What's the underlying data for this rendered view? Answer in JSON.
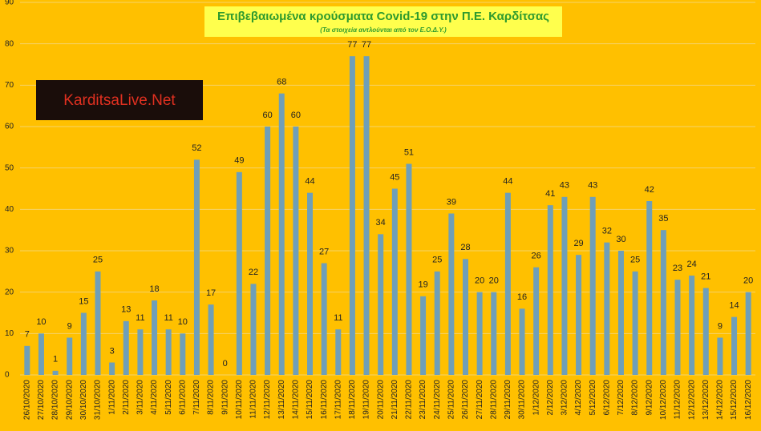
{
  "chart_data": {
    "type": "bar",
    "title": "Επιβεβαιωμένα κρούσματα Covid-19 στην Π.Ε. Καρδίτσας",
    "subtitle": "(Τα στοιχεία αντλούνται από τον Ε.Ο.Δ.Υ.)",
    "watermark": "KarditsaLive.Net",
    "categories": [
      "26/10/2020",
      "27/10/2020",
      "28/10/2020",
      "29/10/2020",
      "30/10/2020",
      "31/10/2020",
      "1/11/2020",
      "2/11/2020",
      "3/11/2020",
      "4/11/2020",
      "5/11/2020",
      "6/11/2020",
      "7/11/2020",
      "8/11/2020",
      "9/11/2020",
      "10/11/2020",
      "11/11/2020",
      "12/11/2020",
      "13/11/2020",
      "14/11/2020",
      "15/11/2020",
      "16/11/2020",
      "17/11/2020",
      "18/11/2020",
      "19/11/2020",
      "20/11/2020",
      "21/11/2020",
      "22/11/2020",
      "23/11/2020",
      "24/11/2020",
      "25/11/2020",
      "26/11/2020",
      "27/11/2020",
      "28/11/2020",
      "29/11/2020",
      "30/11/2020",
      "1/12/2020",
      "2/12/2020",
      "3/12/2020",
      "4/12/2020",
      "5/12/2020",
      "6/12/2020",
      "7/12/2020",
      "8/12/2020",
      "9/12/2020",
      "10/12/2020",
      "11/12/2020",
      "12/12/2020",
      "13/12/2020",
      "14/12/2020",
      "15/12/2020",
      "16/12/2020"
    ],
    "values": [
      7,
      10,
      1,
      9,
      15,
      25,
      3,
      13,
      11,
      18,
      11,
      10,
      52,
      17,
      0,
      49,
      22,
      60,
      68,
      60,
      44,
      27,
      11,
      77,
      77,
      34,
      45,
      51,
      19,
      25,
      39,
      28,
      20,
      20,
      44,
      16,
      26,
      41,
      43,
      29,
      43,
      32,
      30,
      25,
      42,
      35,
      23,
      24,
      21,
      9,
      14,
      20
    ],
    "color": "#6f9fb8",
    "ylim": [
      0,
      90
    ],
    "yticks": [
      0,
      10,
      20,
      30,
      40,
      50,
      60,
      70,
      80,
      90
    ],
    "grid": true
  }
}
